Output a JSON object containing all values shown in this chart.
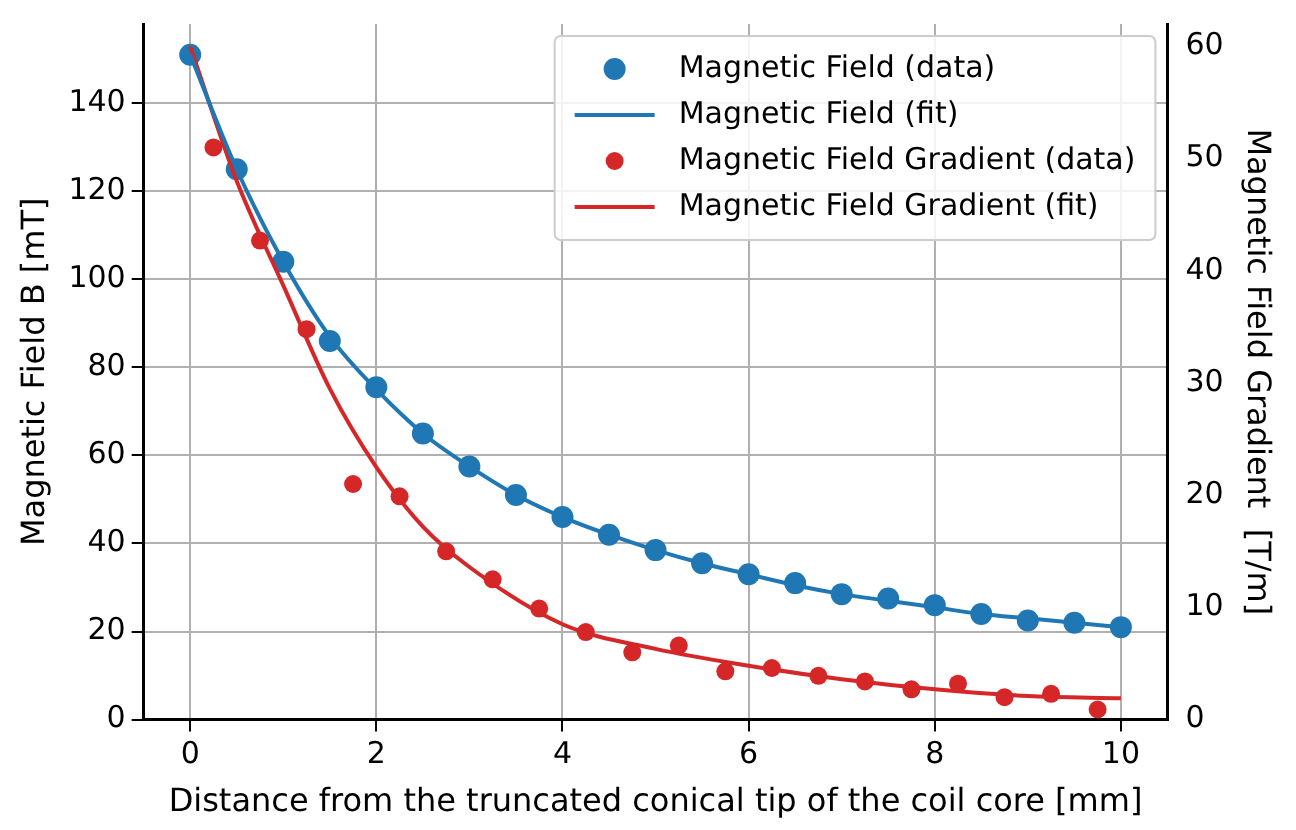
{
  "chart_data": {
    "type": "scatter",
    "xlabel": "Distance from the truncated conical tip of the coil core [mm]",
    "ylabel": "Magnetic Field B [mT]",
    "y2label": "Magnetic Field Gradient  [T/m]",
    "xlim": [
      -0.5,
      10.5
    ],
    "xticks": [
      0,
      2,
      4,
      6,
      8,
      10
    ],
    "ylim": [
      0,
      158
    ],
    "yticks": [
      0,
      20,
      40,
      60,
      80,
      100,
      120,
      140
    ],
    "y2lim": [
      0,
      62
    ],
    "y2ticks": [
      0,
      10,
      20,
      30,
      40,
      50,
      60
    ],
    "grid": true,
    "legend": "top right",
    "series": [
      {
        "name": "Magnetic Field (data)",
        "marker": "circle",
        "color": "#1f77b4",
        "x": [
          0,
          0.5,
          1,
          1.5,
          2,
          2.5,
          3,
          3.5,
          4,
          4.5,
          5,
          5.5,
          6,
          6.5,
          7,
          7.5,
          8,
          8.5,
          9,
          9.5,
          10
        ],
        "values": [
          151,
          125,
          104,
          86,
          75.5,
          65,
          57.5,
          51,
          46,
          42,
          38.5,
          35.5,
          33,
          31,
          28.5,
          27.5,
          26,
          24,
          22.5,
          22,
          21
        ]
      },
      {
        "name": "Magnetic Field (fit)",
        "type": "line",
        "marker": "none",
        "color": "#1f77b4",
        "x": [
          0,
          0.5,
          1,
          1.5,
          2,
          2.5,
          3,
          3.5,
          4,
          4.5,
          5,
          5.5,
          6,
          6.5,
          7,
          7.5,
          8,
          8.5,
          9,
          9.5,
          10
        ],
        "values": [
          151,
          125,
          104,
          87,
          75,
          65,
          57.5,
          51,
          46,
          42,
          38.5,
          35.5,
          33,
          30.5,
          28.5,
          27,
          25.5,
          24,
          23,
          22,
          21
        ]
      },
      {
        "name": "Magnetic Field Gradient (data)",
        "marker": "circle",
        "axis": "y2",
        "color": "#d62728",
        "x": [
          0.25,
          0.75,
          1.25,
          1.75,
          2.25,
          2.75,
          3.25,
          3.75,
          4.25,
          4.75,
          5.25,
          5.75,
          6.25,
          6.75,
          7.25,
          7.75,
          8.25,
          8.75,
          9.25,
          9.75
        ],
        "values": [
          51,
          42.7,
          34.8,
          21,
          19.9,
          15,
          12.5,
          9.9,
          7.8,
          6,
          6.6,
          4.3,
          4.6,
          3.9,
          3.4,
          2.7,
          3.2,
          2,
          2.3,
          0.9
        ]
      },
      {
        "name": "Magnetic Field Gradient (fit)",
        "type": "line",
        "marker": "none",
        "axis": "y2",
        "color": "#d62728",
        "x": [
          0,
          0.5,
          1,
          1.5,
          2,
          2.5,
          3,
          4,
          5,
          6,
          7,
          8,
          9,
          10
        ],
        "values": [
          60,
          48,
          38.7,
          29.5,
          22.5,
          17.2,
          13.6,
          8.5,
          6.3,
          4.8,
          3.6,
          2.7,
          2.1,
          1.9
        ]
      }
    ]
  }
}
